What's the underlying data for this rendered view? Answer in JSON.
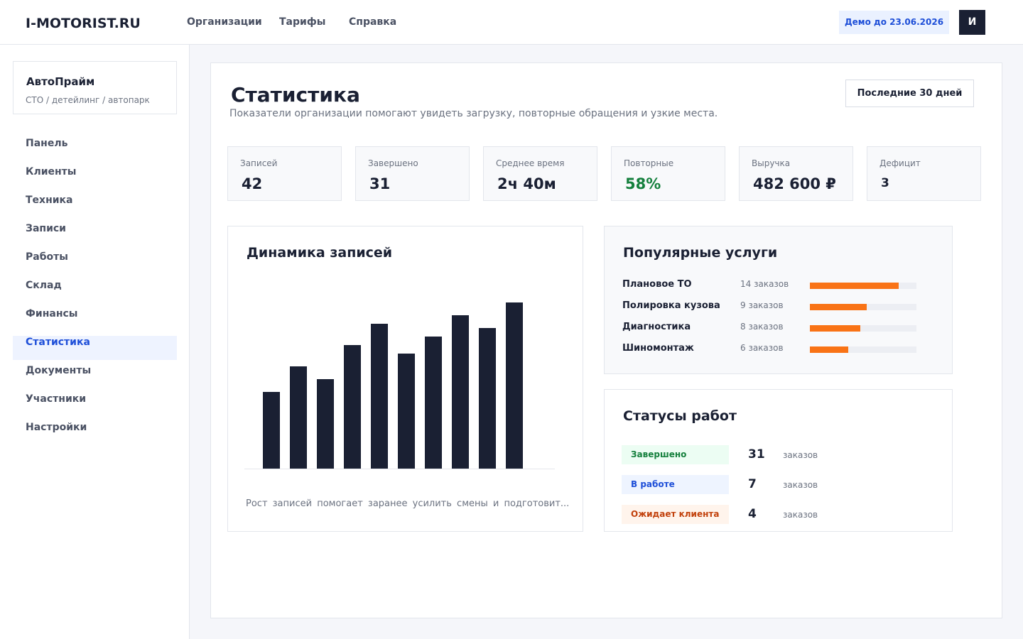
{
  "header": {
    "logo": "I-MOTORIST.RU",
    "nav": [
      "Организации",
      "Тарифы",
      "Справка"
    ],
    "demo": "Демо до 23.06.2026",
    "avatar": "И"
  },
  "sidebar": {
    "org_name": "АвтоПрайм",
    "org_desc": "СТО / детейлинг / автопарк",
    "menu": [
      "Панель",
      "Клиенты",
      "Техника",
      "Записи",
      "Работы",
      "Склад",
      "Финансы",
      "Статистика",
      "Документы",
      "Участники",
      "Настройки"
    ],
    "active": 7
  },
  "page": {
    "title": "Статистика",
    "subtitle": "Показатели организации помогают увидеть загрузку, повторные обращения и узкие места.",
    "period": "Последние 30 дней"
  },
  "kpis": [
    {
      "label": "Записей",
      "value": "42"
    },
    {
      "label": "Завершено",
      "value": "31"
    },
    {
      "label": "Среднее время",
      "value": "2ч 40м"
    },
    {
      "label": "Повторные",
      "value": "58%"
    },
    {
      "label": "Выручка",
      "value": "482 600 ₽"
    },
    {
      "label": "Дефицит",
      "value": "3"
    }
  ],
  "chart_data": {
    "type": "bar",
    "title": "Динамика записей",
    "values": [
      18,
      24,
      21,
      29,
      34,
      27,
      31,
      36,
      33,
      39
    ],
    "color": "#1a2033",
    "caption": "Рост записей помогает заранее усилить смены и подготовит..."
  },
  "services": {
    "title": "Популярные услуги",
    "items": [
      {
        "name": "Плановое ТО",
        "count": 14,
        "label": "14 заказов"
      },
      {
        "name": "Полировка кузова",
        "count": 9,
        "label": "9 заказов"
      },
      {
        "name": "Диагностика",
        "count": 8,
        "label": "8 заказов"
      },
      {
        "name": "Шиномонтаж",
        "count": 6,
        "label": "6 заказов"
      }
    ]
  },
  "statuses": {
    "title": "Статусы работ",
    "items": [
      {
        "name": "Завершено",
        "count": "31",
        "unit": "заказов"
      },
      {
        "name": "В работе",
        "count": "7",
        "unit": "заказов"
      },
      {
        "name": "Ожидает клиента",
        "count": "4",
        "unit": "заказов"
      }
    ]
  }
}
